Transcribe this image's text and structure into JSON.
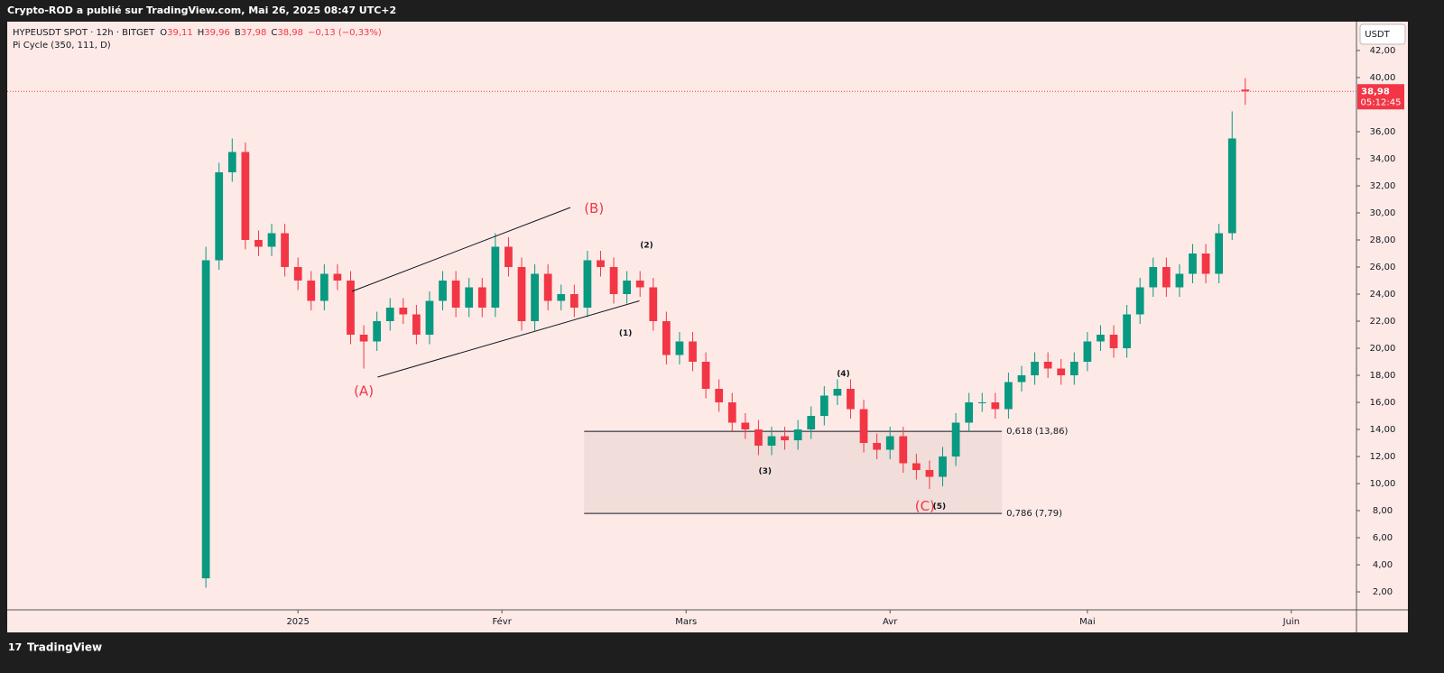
{
  "chart_data": {
    "type": "candlestick",
    "header": "Crypto-ROD a publié sur TradingView.com, Mai 26, 2025 08:47 UTC+2",
    "footer": "TradingView",
    "legend": {
      "symbol": "HYPEUSDT SPOT · 12h · BITGET",
      "ohlc": [
        {
          "key": "O",
          "value": "39,11"
        },
        {
          "key": "H",
          "value": "39,96"
        },
        {
          "key": "B",
          "value": "37,98"
        },
        {
          "key": "C",
          "value": "38,98"
        }
      ],
      "change": "−0,13 (−0,33%)",
      "indicator": "Pi Cycle (350, 111, D)"
    },
    "axis_unit": "USDT",
    "up_color": "#089981",
    "down_color": "#f23645",
    "x": [
      17,
      19,
      21,
      23,
      25,
      27,
      29,
      31,
      33,
      35,
      37,
      39,
      41,
      43,
      45,
      47,
      49,
      51,
      53,
      55,
      57,
      59,
      61,
      63,
      65,
      67,
      69,
      71,
      73,
      75,
      77,
      79,
      81,
      83,
      85,
      87,
      89,
      91,
      93,
      95,
      97,
      99,
      101,
      103,
      105,
      107,
      109,
      111,
      113,
      115,
      117,
      119,
      121,
      123,
      125,
      127,
      129,
      131,
      133,
      135,
      137,
      139,
      141,
      143,
      145,
      147,
      149,
      151,
      153,
      155,
      157,
      159,
      161,
      163,
      165,
      167,
      169,
      171,
      173,
      175
    ],
    "open": [
      3,
      26.5,
      33,
      34.5,
      28,
      27.5,
      28.5,
      26,
      25,
      23.5,
      25.5,
      25,
      21,
      20.5,
      22,
      23,
      22.5,
      21,
      23.5,
      25,
      23,
      24.5,
      23,
      27.5,
      26,
      22,
      25.5,
      23.5,
      24,
      23,
      26.5,
      26,
      24,
      25,
      24.5,
      22,
      19.5,
      20.5,
      19,
      17,
      16,
      14.5,
      14,
      12.8,
      13.5,
      13.2,
      14,
      15,
      16.5,
      17,
      15.5,
      13,
      12.5,
      13.5,
      11.5,
      11,
      10.5,
      12,
      14.5,
      16,
      16,
      15.5,
      17.5,
      18,
      19,
      18.5,
      18,
      19,
      20.5,
      21,
      20,
      22.5,
      24.5,
      26,
      24.5,
      25.5,
      27,
      25.5,
      28.5,
      39.11
    ],
    "high": [
      27.5,
      33.7,
      35.5,
      35.2,
      28.7,
      29.2,
      29.2,
      26.7,
      25.7,
      26.2,
      26.2,
      25.7,
      21.7,
      22.7,
      23.7,
      23.7,
      23.2,
      24.2,
      25.7,
      25.7,
      25.2,
      25.2,
      28.5,
      28.2,
      26.7,
      26.2,
      26.2,
      24.7,
      24.7,
      27.2,
      27.2,
      26.7,
      25.7,
      25.7,
      25.2,
      22.7,
      21.2,
      21.2,
      19.7,
      17.7,
      16.7,
      15.2,
      14.7,
      14.2,
      14.2,
      14.7,
      15.7,
      17.2,
      17.7,
      17.7,
      16.2,
      13.7,
      14.2,
      14.2,
      12.2,
      11.7,
      12.7,
      15.2,
      16.7,
      16.7,
      16.7,
      18.2,
      18.7,
      19.7,
      19.7,
      19.2,
      19.7,
      21.2,
      21.7,
      21.7,
      23.2,
      25.2,
      26.7,
      26.7,
      26.2,
      27.7,
      27.7,
      29.2,
      37.5,
      39.96
    ],
    "low": [
      2.3,
      25.8,
      32.3,
      27.3,
      26.8,
      26.8,
      25.3,
      24.3,
      22.8,
      22.8,
      24.3,
      20.3,
      18.5,
      19.8,
      21.3,
      21.8,
      20.3,
      20.3,
      22.8,
      22.3,
      22.3,
      22.3,
      22.3,
      25.3,
      21.3,
      21.3,
      22.8,
      22.8,
      22.3,
      22.3,
      25.3,
      23.3,
      23.3,
      23.8,
      21.3,
      18.8,
      18.8,
      18.3,
      16.3,
      15.3,
      13.8,
      13.3,
      12.1,
      12.1,
      12.5,
      12.5,
      13.3,
      14.3,
      15.8,
      14.8,
      12.3,
      11.8,
      11.8,
      10.8,
      10.3,
      9.6,
      9.8,
      11.3,
      13.8,
      15.3,
      14.8,
      14.8,
      16.8,
      17.3,
      17.8,
      17.3,
      17.3,
      18.3,
      19.8,
      19.3,
      19.3,
      21.8,
      23.8,
      23.8,
      23.8,
      24.8,
      24.8,
      24.8,
      28,
      37.98
    ],
    "close": [
      26.5,
      33,
      34.5,
      28,
      27.5,
      28.5,
      26,
      25,
      23.5,
      25.5,
      25,
      21,
      20.5,
      22,
      23,
      22.5,
      21,
      23.5,
      25,
      23,
      24.5,
      23,
      27.5,
      26,
      22,
      25.5,
      23.5,
      24,
      23,
      26.5,
      26,
      24,
      25,
      24.5,
      22,
      19.5,
      20.5,
      19,
      17,
      16,
      14.5,
      14,
      12.8,
      13.5,
      13.2,
      14,
      15,
      16.5,
      17,
      15.5,
      13,
      12.5,
      13.5,
      11.5,
      11,
      10.5,
      12,
      14.5,
      16,
      16,
      15.5,
      17.5,
      18,
      19,
      18.5,
      18,
      19,
      20.5,
      21,
      20,
      22.5,
      24.5,
      26,
      24.5,
      25.5,
      27,
      25.5,
      28.5,
      35.5,
      38.98
    ],
    "xlim": [
      -13.2,
      191.9
    ],
    "xticks": [
      {
        "value": 31,
        "label": "2025"
      },
      {
        "value": 62,
        "label": "Févr"
      },
      {
        "value": 90,
        "label": "Mars"
      },
      {
        "value": 121,
        "label": "Avr"
      },
      {
        "value": 151,
        "label": "Mai"
      },
      {
        "value": 182,
        "label": "Juin"
      }
    ],
    "ylim": [
      0.67,
      44.13
    ],
    "yticks": [
      {
        "value": 2,
        "label": "2,00"
      },
      {
        "value": 4,
        "label": "4,00"
      },
      {
        "value": 6,
        "label": "6,00"
      },
      {
        "value": 8,
        "label": "8,00"
      },
      {
        "value": 10,
        "label": "10,00"
      },
      {
        "value": 12,
        "label": "12,00"
      },
      {
        "value": 14,
        "label": "14,00"
      },
      {
        "value": 16,
        "label": "16,00"
      },
      {
        "value": 18,
        "label": "18,00"
      },
      {
        "value": 20,
        "label": "20,00"
      },
      {
        "value": 22,
        "label": "22,00"
      },
      {
        "value": 24,
        "label": "24,00"
      },
      {
        "value": 26,
        "label": "26,00"
      },
      {
        "value": 28,
        "label": "28,00"
      },
      {
        "value": 30,
        "label": "30,00"
      },
      {
        "value": 32,
        "label": "32,00"
      },
      {
        "value": 34,
        "label": "34,00"
      },
      {
        "value": 36,
        "label": "36,00"
      },
      {
        "value": 40,
        "label": "40,00"
      },
      {
        "value": 42,
        "label": "42,00"
      }
    ],
    "grid": false,
    "last_price": {
      "value": 38.98,
      "label": "38,98",
      "countdown": "05:12:45"
    },
    "fib_range": [
      74.5,
      138
    ],
    "fib_levels": [
      {
        "value": 13.86,
        "label": "0,618 (13,86)"
      },
      {
        "value": 7.79,
        "label": "0,786 (7,79)"
      }
    ],
    "trendlines": [
      {
        "x": [
          39.2,
          72.4
        ],
        "y": [
          24.2,
          30.4
        ]
      },
      {
        "x": [
          43.1,
          82.9
        ],
        "y": [
          17.87,
          23.5
        ]
      }
    ],
    "wave_labels": [
      {
        "text": "(B)",
        "x": 76,
        "y": 30.3,
        "major": true
      },
      {
        "text": "(A)",
        "x": 41,
        "y": 16.8,
        "major": true
      },
      {
        "text": "(C)",
        "x": 126.3,
        "y": 8.3,
        "major": true
      },
      {
        "text": "(1)",
        "x": 80.8,
        "y": 21.1,
        "major": false
      },
      {
        "text": "(2)",
        "x": 84,
        "y": 27.6,
        "major": false
      },
      {
        "text": "(3)",
        "x": 102,
        "y": 10.9,
        "major": false
      },
      {
        "text": "(4)",
        "x": 113.9,
        "y": 18.1,
        "major": false
      },
      {
        "text": "(5)",
        "x": 128.5,
        "y": 8.3,
        "major": false
      }
    ]
  }
}
